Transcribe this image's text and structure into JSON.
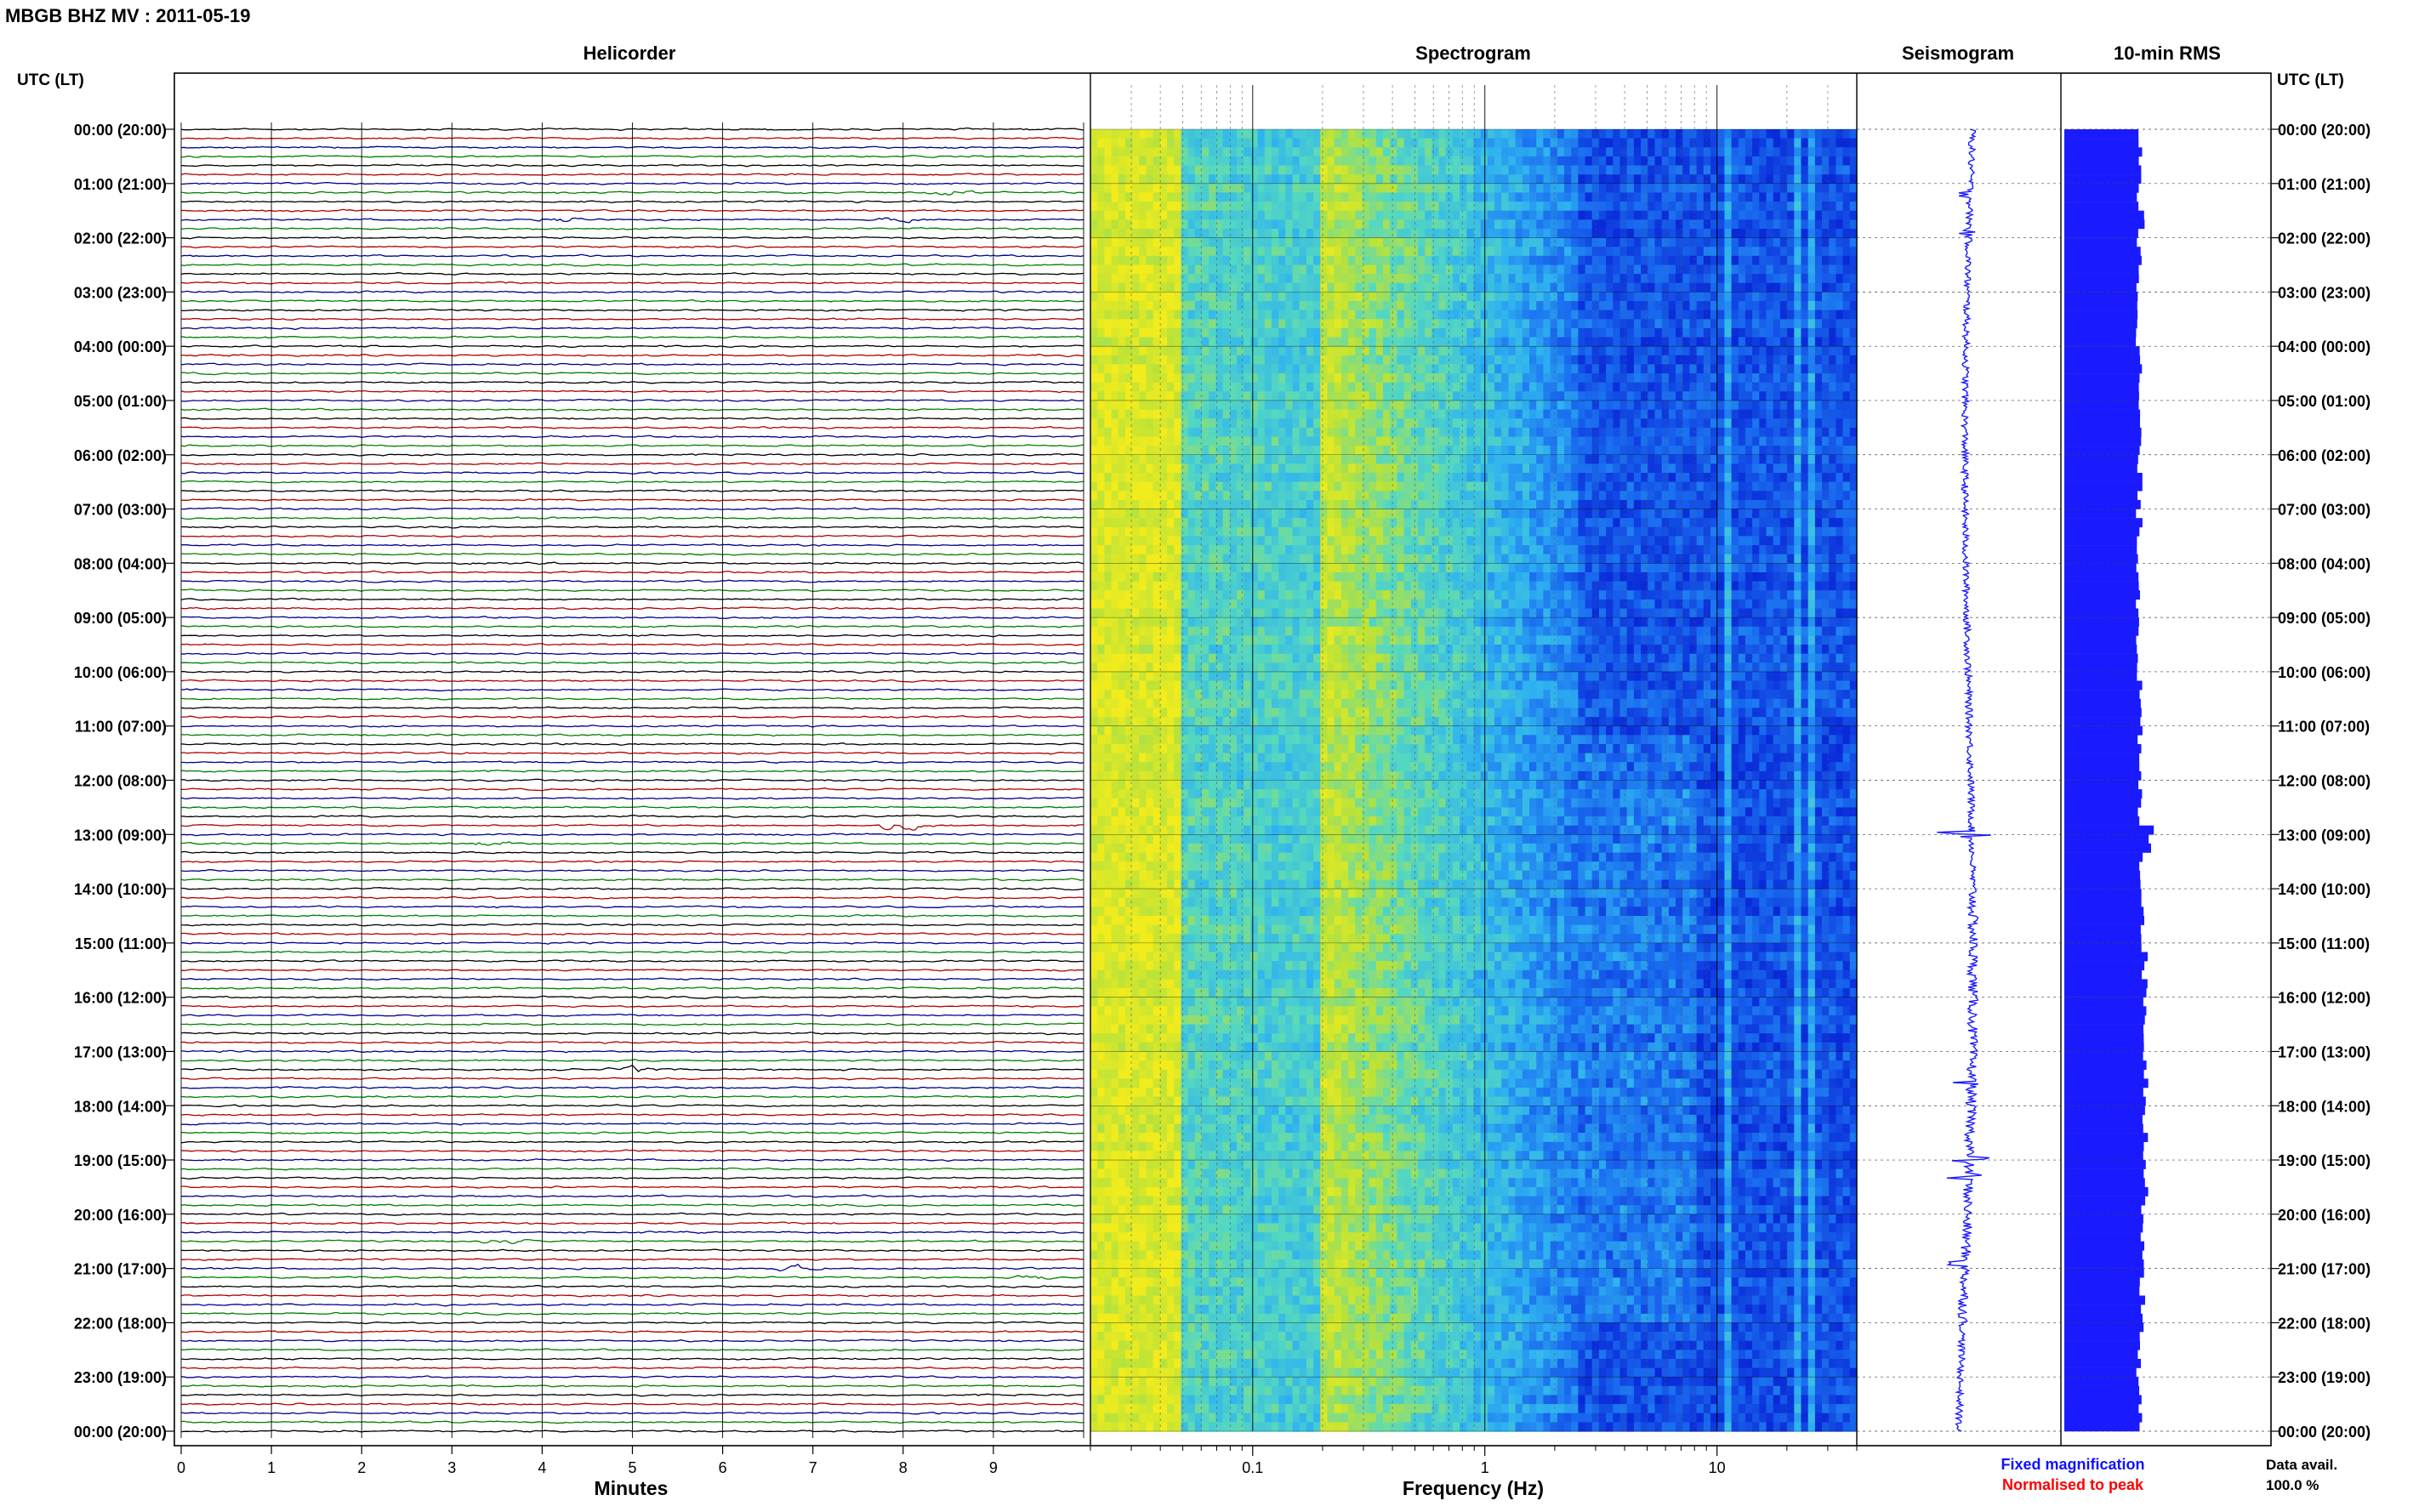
{
  "header": {
    "title": "MBGB BHZ MV : 2011-05-19"
  },
  "chart_data": [
    {
      "type": "line",
      "title": "Helicorder",
      "xlabel": "Minutes",
      "xlim": [
        0,
        10
      ],
      "x_ticks": [
        "0",
        "1",
        "2",
        "3",
        "4",
        "5",
        "6",
        "7",
        "8",
        "9"
      ],
      "y_axis_title": "UTC (LT)",
      "y_ticks": [
        "00:00 (20:00)",
        "01:00 (21:00)",
        "02:00 (22:00)",
        "03:00 (23:00)",
        "04:00 (00:00)",
        "05:00 (01:00)",
        "06:00 (02:00)",
        "07:00 (03:00)",
        "08:00 (04:00)",
        "09:00 (05:00)",
        "10:00 (06:00)",
        "11:00 (07:00)",
        "12:00 (08:00)",
        "13:00 (09:00)",
        "14:00 (10:00)",
        "15:00 (11:00)",
        "16:00 (12:00)",
        "17:00 (13:00)",
        "18:00 (14:00)",
        "19:00 (15:00)",
        "20:00 (16:00)",
        "21:00 (17:00)",
        "22:00 (18:00)",
        "23:00 (19:00)",
        "00:00 (20:00)"
      ],
      "trace_rows": 144,
      "trace_colors": [
        "#000000",
        "#b00000",
        "#00008b",
        "#008000"
      ],
      "events": [
        {
          "hour": 1,
          "trace_in_hour": 1,
          "minute": 8.5,
          "amp": 2.5,
          "color": "#000000"
        },
        {
          "hour": 1,
          "trace_in_hour": 4,
          "minute": 4.2,
          "amp": 2.0,
          "color": "#008000"
        },
        {
          "hour": 1,
          "trace_in_hour": 4,
          "minute": 8.0,
          "amp": 2.0,
          "color": "#008000"
        },
        {
          "hour": 12,
          "trace_in_hour": 5,
          "minute": 8.0,
          "amp": 5.0,
          "color": "#b00000"
        },
        {
          "hour": 13,
          "trace_in_hour": 1,
          "minute": 3.4,
          "amp": 2.0,
          "color": "#b00000"
        },
        {
          "hour": 17,
          "trace_in_hour": 2,
          "minute": 5.0,
          "amp": 3.0,
          "color": "#00008b"
        },
        {
          "hour": 20,
          "trace_in_hour": 3,
          "minute": 3.6,
          "amp": 2.5,
          "color": "#000000"
        },
        {
          "hour": 20,
          "trace_in_hour": 6,
          "minute": 6.8,
          "amp": 3.0,
          "color": "#00008b"
        },
        {
          "hour": 21,
          "trace_in_hour": 1,
          "minute": 9.5,
          "amp": 2.0,
          "color": "#008000"
        }
      ]
    },
    {
      "type": "heatmap",
      "title": "Spectrogram",
      "xlabel": "Frequency (Hz)",
      "x_scale": "log",
      "xlim": [
        0.02,
        40
      ],
      "x_ticks": [
        0.1,
        1,
        10
      ],
      "x_tick_labels": [
        "0.1",
        "1",
        "10"
      ],
      "colormap": [
        "#0a2ad8",
        "#1a6df0",
        "#2fb3f0",
        "#55d8c0",
        "#b8e23a",
        "#f2ec1c"
      ],
      "rows": 144,
      "spectral_lines_hz": [
        11,
        22,
        26
      ]
    },
    {
      "type": "line",
      "title": "Seismogram",
      "legend": [
        {
          "label": "Fixed magnification",
          "color": "#1010ff"
        },
        {
          "label": "Normalised to peak",
          "color": "#ff0000"
        }
      ],
      "color": "#1a1aff",
      "spikes": [
        {
          "hour": 1.2,
          "amp": 14
        },
        {
          "hour": 1.9,
          "amp": 12
        },
        {
          "hour": 13.0,
          "amp": 52
        },
        {
          "hour": 17.6,
          "amp": 22
        },
        {
          "hour": 19.0,
          "amp": 26
        },
        {
          "hour": 19.3,
          "amp": 34
        },
        {
          "hour": 20.9,
          "amp": 28
        }
      ]
    },
    {
      "type": "bar",
      "title": "10-min RMS",
      "orientation": "horizontal",
      "color": "#1a1aff",
      "bins": 144
    }
  ],
  "data_avail": {
    "label": "Data avail.",
    "value": "100.0 %"
  }
}
